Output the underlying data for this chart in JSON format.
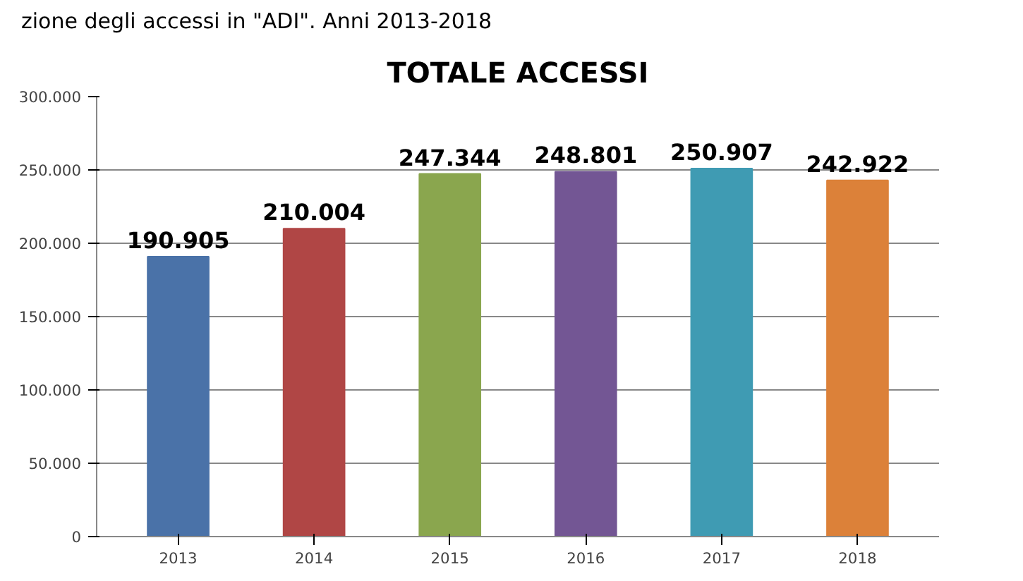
{
  "chart_data": {
    "type": "bar",
    "title": "TOTALE ACCESSI",
    "annotations": [
      "zione degli accessi in \"ADI\". Anni 2013-2018"
    ],
    "categories": [
      "2013",
      "2014",
      "2015",
      "2016",
      "2017",
      "2018"
    ],
    "values": [
      190905,
      210004,
      247344,
      248801,
      250907,
      242922
    ],
    "value_labels": [
      "190.905",
      "210.004",
      "247.344",
      "248.801",
      "250.907",
      "242.922"
    ],
    "colors": [
      "#4a72a8",
      "#b04645",
      "#8aa64e",
      "#735694",
      "#3f9bb3",
      "#dc8139"
    ],
    "ylim": [
      0,
      300000
    ],
    "yticks": [
      {
        "value": 0,
        "label": "0"
      },
      {
        "value": 50000,
        "label": "50.000"
      },
      {
        "value": 100000,
        "label": "100.000"
      },
      {
        "value": 150000,
        "label": "150.000"
      },
      {
        "value": 200000,
        "label": "200.000"
      },
      {
        "value": 250000,
        "label": "250.000"
      },
      {
        "value": 300000,
        "label": "300.000"
      }
    ],
    "grid": "y"
  }
}
